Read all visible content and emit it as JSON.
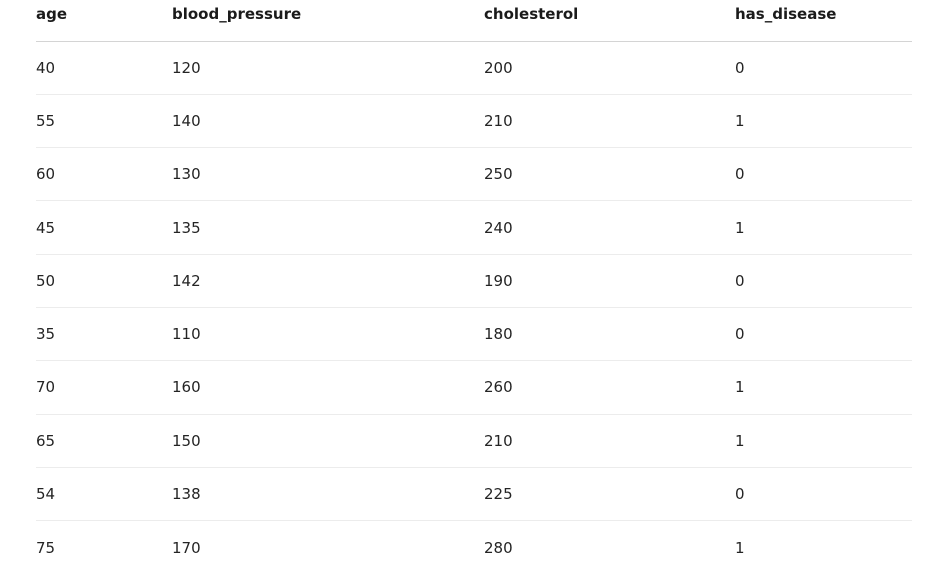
{
  "table": {
    "columns": [
      "age",
      "blood_pressure",
      "cholesterol",
      "has_disease"
    ],
    "rows": [
      [
        "40",
        "120",
        "200",
        "0"
      ],
      [
        "55",
        "140",
        "210",
        "1"
      ],
      [
        "60",
        "130",
        "250",
        "0"
      ],
      [
        "45",
        "135",
        "240",
        "1"
      ],
      [
        "50",
        "142",
        "190",
        "0"
      ],
      [
        "35",
        "110",
        "180",
        "0"
      ],
      [
        "70",
        "160",
        "260",
        "1"
      ],
      [
        "65",
        "150",
        "210",
        "1"
      ],
      [
        "54",
        "138",
        "225",
        "0"
      ],
      [
        "75",
        "170",
        "280",
        "1"
      ]
    ]
  }
}
